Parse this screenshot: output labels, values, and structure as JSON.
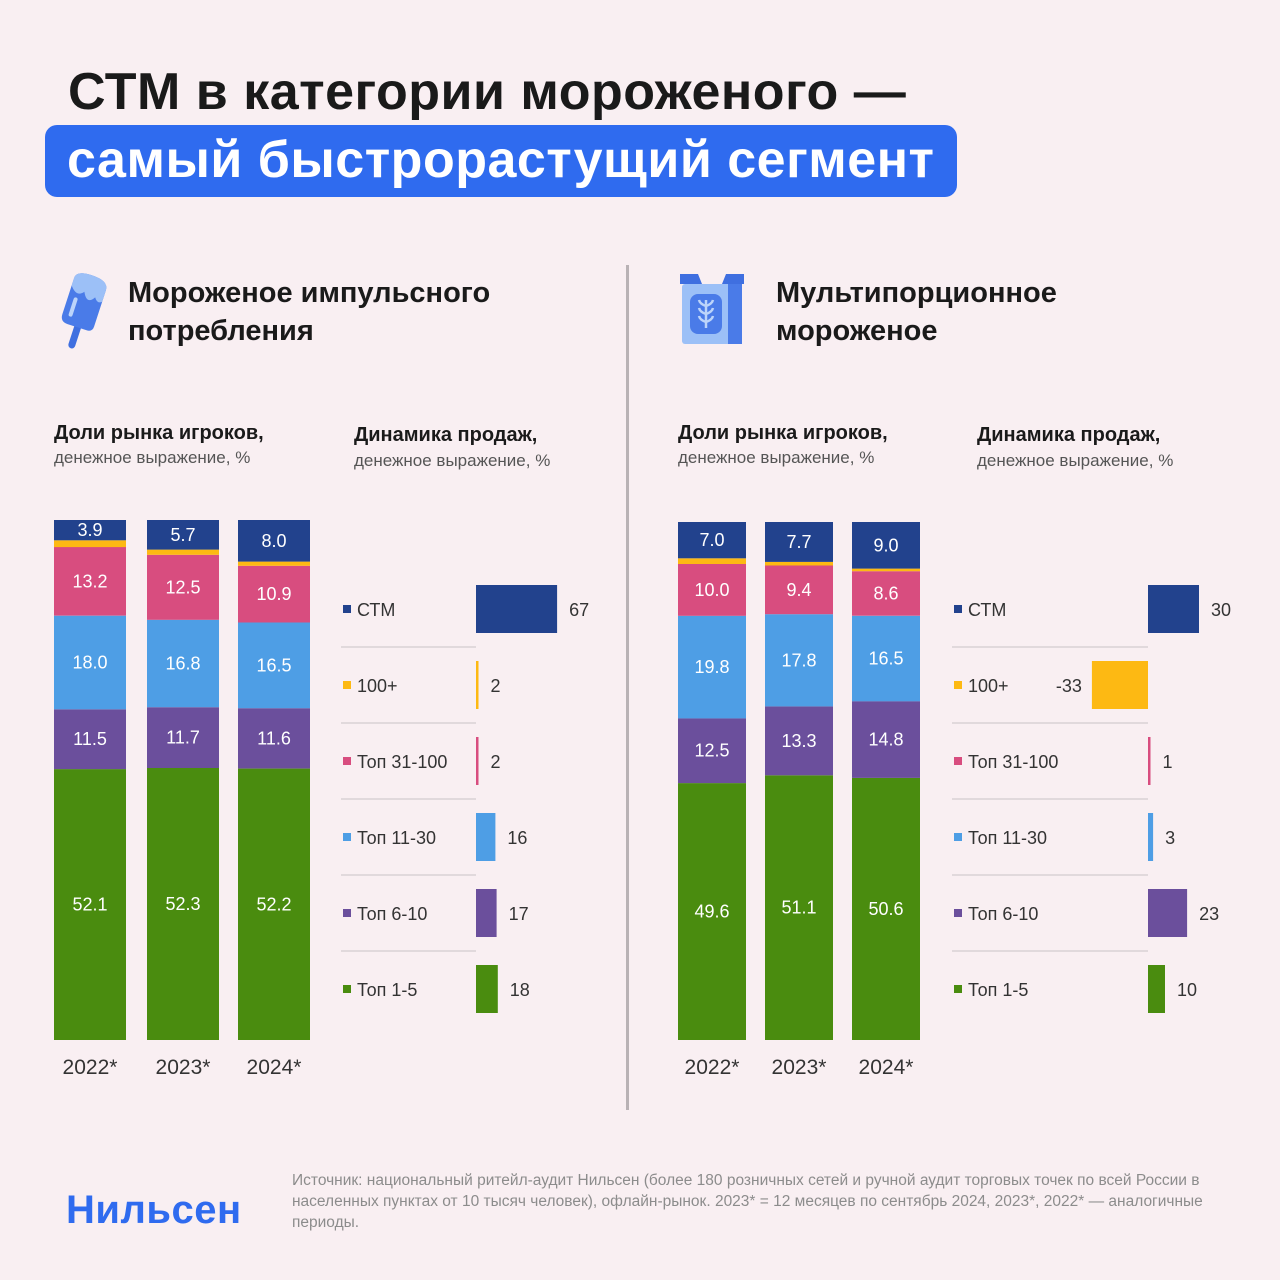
{
  "header": {
    "title_line1": "СТМ в категории мороженого —",
    "title_line2": "самый быстрорастущий сегмент"
  },
  "colors": {
    "stm": "#22428d",
    "p100": "#fdb913",
    "top31": "#d84d7f",
    "top11": "#4e9ee5",
    "top6": "#6b4f9c",
    "top1": "#4a8c0f",
    "accent": "#2f6bef"
  },
  "left": {
    "title": "Мороженое импульсного потребления",
    "icon": "popsicle-icon",
    "share_title": "Доли рынка игроков,",
    "share_note": "денежное выражение, %",
    "dyn_title": "Динамика продаж,",
    "dyn_note": "денежное выражение, %"
  },
  "right": {
    "title": "Мультипорционное мороженое",
    "icon": "ice-cream-box-icon",
    "share_title": "Доли рынка игроков,",
    "share_note": "денежное выражение, %",
    "dyn_title": "Динамика продаж,",
    "dyn_note": "денежное выражение, %"
  },
  "chart_data": [
    {
      "type": "bar",
      "title": "Мороженое импульсного потребления — Доли рынка игроков, денежное выражение, %",
      "stacked": true,
      "categories": [
        "2022*",
        "2023*",
        "2024*"
      ],
      "series": [
        {
          "name": "Топ 1-5",
          "values": [
            52.1,
            52.3,
            52.2
          ]
        },
        {
          "name": "Топ 6-10",
          "values": [
            11.5,
            11.7,
            11.6
          ]
        },
        {
          "name": "Топ 11-30",
          "values": [
            18.0,
            16.8,
            16.5
          ]
        },
        {
          "name": "Топ 31-100",
          "values": [
            13.2,
            12.5,
            10.9
          ]
        },
        {
          "name": "100+",
          "values": [
            1.3,
            1.0,
            0.8
          ]
        },
        {
          "name": "СТМ",
          "values": [
            3.9,
            5.7,
            8.0
          ]
        }
      ],
      "labels": {
        "Топ 1-5": [
          "52.1",
          "52.3",
          "52.2"
        ],
        "Топ 6-10": [
          "11.5",
          "11.7",
          "11.6"
        ],
        "Топ 11-30": [
          "18.0",
          "16.8",
          "16.5"
        ],
        "Топ 31-100": [
          "13.2",
          "12.5",
          "10.9"
        ],
        "СТМ": [
          "3.9",
          "5.7",
          "8.0"
        ]
      },
      "ylim": [
        0,
        100
      ]
    },
    {
      "type": "bar",
      "title": "Мороженое импульсного потребления — Динамика продаж, денежное выражение, %",
      "orientation": "horizontal",
      "categories": [
        "СТМ",
        "100+",
        "Топ 31-100",
        "Топ 11-30",
        "Топ 6-10",
        "Топ 1-5"
      ],
      "values": [
        67,
        2,
        2,
        16,
        17,
        18
      ],
      "value_labels": [
        "67",
        "2",
        "2",
        "16",
        "17",
        "18"
      ]
    },
    {
      "type": "bar",
      "title": "Мультипорционное мороженое — Доли рынка игроков, денежное выражение, %",
      "stacked": true,
      "categories": [
        "2022*",
        "2023*",
        "2024*"
      ],
      "series": [
        {
          "name": "Топ 1-5",
          "values": [
            49.6,
            51.1,
            50.6
          ]
        },
        {
          "name": "Топ 6-10",
          "values": [
            12.5,
            13.3,
            14.8
          ]
        },
        {
          "name": "Топ 11-30",
          "values": [
            19.8,
            17.8,
            16.5
          ]
        },
        {
          "name": "Топ 31-100",
          "values": [
            10.0,
            9.4,
            8.6
          ]
        },
        {
          "name": "100+",
          "values": [
            1.1,
            0.7,
            0.5
          ]
        },
        {
          "name": "СТМ",
          "values": [
            7.0,
            7.7,
            9.0
          ]
        }
      ],
      "labels": {
        "Топ 1-5": [
          "49.6",
          "51.1",
          "50.6"
        ],
        "Топ 6-10": [
          "12.5",
          "13.3",
          "14.8"
        ],
        "Топ 11-30": [
          "19.8",
          "17.8",
          "16.5"
        ],
        "Топ 31-100": [
          "10.0",
          "9.4",
          "8.6"
        ],
        "СТМ": [
          "7.0",
          "7.7",
          "9.0"
        ]
      },
      "ylim": [
        0,
        100
      ]
    },
    {
      "type": "bar",
      "title": "Мультипорционное мороженое — Динамика продаж, денежное выражение, %",
      "orientation": "horizontal",
      "categories": [
        "СТМ",
        "100+",
        "Топ 31-100",
        "Топ 11-30",
        "Топ 6-10",
        "Топ 1-5"
      ],
      "values": [
        30,
        -33,
        1,
        3,
        23,
        10
      ],
      "value_labels": [
        "30",
        "-33",
        "1",
        "3",
        "23",
        "10"
      ]
    }
  ],
  "footer": {
    "source": "Источник: национальный ритейл-аудит Нильсен (более 180 розничных сетей и ручной аудит торговых точек по всей России в населенных пунктах от 10 тысяч человек), офлайн-рынок. 2023* = 12 месяцев по сентябрь 2024, 2023*, 2022* — аналогичные периоды.",
    "logo": "Нильсен"
  }
}
